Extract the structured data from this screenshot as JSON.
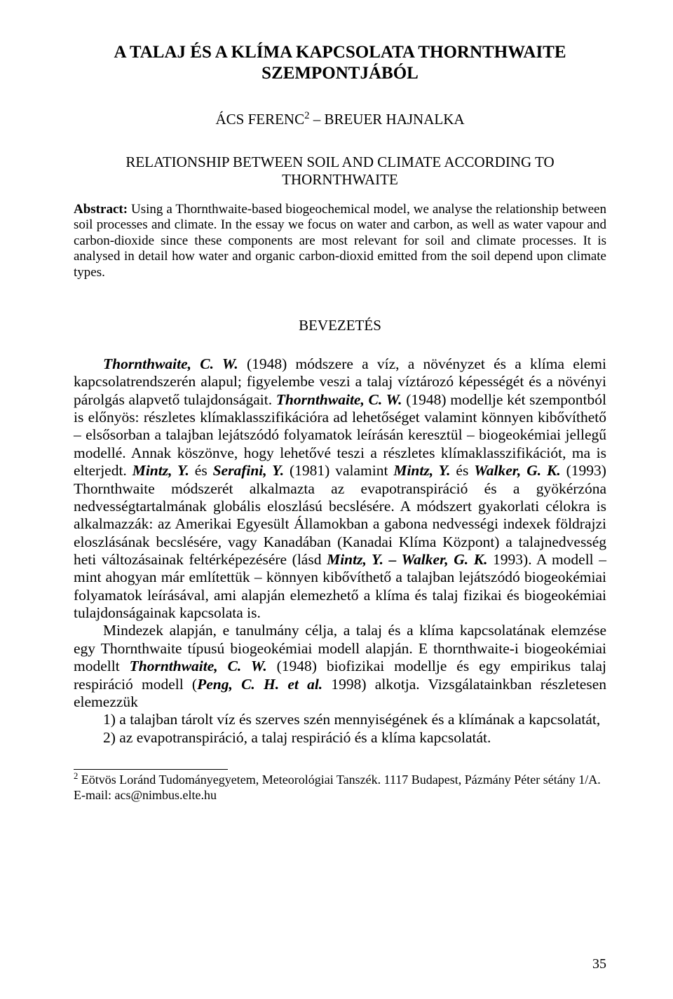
{
  "title_line1": "A TALAJ ÉS A KLÍMA KAPCSOLATA THORNTHWAITE",
  "title_line2": "SZEMPONTJÁBÓL",
  "authors": "ÁCS FERENC",
  "authors_sup": "2",
  "authors_after": " – BREUER HAJNALKA",
  "subtitle": "RELATIONSHIP BETWEEN SOIL AND CLIMATE ACCORDING TO THORNTHWAITE",
  "abstract_label": "Abstract:",
  "abstract_text": " Using a Thornthwaite-based biogeochemical model, we analyse the relationship between soil processes and climate. In the essay we focus on water and carbon, as well as water vapour and carbon-dioxide since these components are most relevant for soil and climate processes. It is analysed in detail how water and organic carbon-dioxid emitted from the soil depend upon climate types.",
  "section_heading": "BEVEZETÉS",
  "p1_a": "Thornthwaite, C. W.",
  "p1_b": " (1948) módszere a víz, a növényzet és a klíma elemi kapcsolatrendszerén alapul; figyelembe veszi a talaj víztározó képességét és a növényi párolgás alapvető tulajdonságait. ",
  "p1_c": "Thornthwaite, C. W.",
  "p1_d": " (1948) modellje két szempontból is előnyös: részletes klímaklasszifikációra ad lehetőséget valamint könnyen kibővíthető – elsősorban a talajban lejátszódó folyamatok leírásán keresztül – biogeokémiai jellegű modellé. Annak köszönve, hogy lehetővé teszi a részletes klímaklasszifikációt, ma is elterjedt. ",
  "p1_e": "Mintz, Y.",
  "p1_f": " és ",
  "p1_g": "Serafini, Y.",
  "p1_h": " (1981) valamint ",
  "p1_i": "Mintz, Y.",
  "p1_j": " és ",
  "p1_k": "Walker, G. K.",
  "p1_l": " (1993) Thornthwaite módszerét alkalmazta az evapotranspiráció és a gyökérzóna nedvességtartalmának globális eloszlású becslésére. A módszert gyakorlati célokra is alkalmazzák: az Amerikai Egyesült Államokban a gabona nedvességi indexek földrajzi eloszlásának becslésére, vagy Kanadában (Kanadai Klíma Központ) a talajnedvesség heti változásainak feltérképezésére (lásd ",
  "p1_m": "Mintz, Y. – Walker, G. K.",
  "p1_n": " 1993). A modell – mint ahogyan már említettük – könnyen kibővíthető a talajban lejátszódó biogeokémiai folyamatok leírásával, ami alapján elemezhető a klíma és talaj fizikai és biogeokémiai tulajdonságainak kapcsolata is.",
  "p2_a": "Mindezek alapján, e tanulmány célja, a talaj és a klíma kapcsolatának elemzése egy Thornthwaite típusú biogeokémiai modell alapján. E thornthwaite-i biogeokémiai modellt ",
  "p2_b": "Thornthwaite, C. W.",
  "p2_c": " (1948) biofizikai modellje és egy empirikus talaj respiráció modell (",
  "p2_d": "Peng, C. H. et al.",
  "p2_e": " 1998) alkotja. Vizsgálatainkban részletesen elemezzük",
  "li1": "1) a talajban tárolt víz és szerves szén mennyiségének és a klímának a kapcsolatát,",
  "li2": "2) az evapotranspiráció, a talaj respiráció és a klíma kapcsolatát.",
  "footnote_sup": "2",
  "footnote": " Eötvös Loránd Tudományegyetem, Meteorológiai Tanszék. 1117 Budapest, Pázmány Péter sétány 1/A. E-mail: acs@nimbus.elte.hu",
  "page_number": "35"
}
